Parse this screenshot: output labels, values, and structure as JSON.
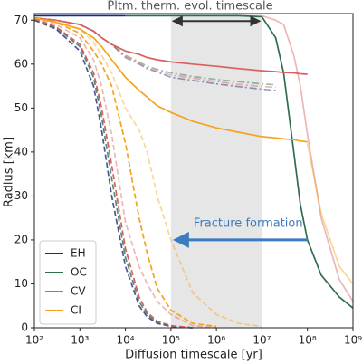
{
  "chart_data": {
    "type": "line",
    "title": "Pltm. therm. evol. timescale",
    "annotation": "Fracture formation",
    "xlabel": "Diffusion timescale [yr]",
    "ylabel": "Radius [km]",
    "log_x": true,
    "legend": "lower left",
    "shade": [
      100000,
      10000000
    ],
    "timescale_arrow": {
      "x": [
        100000,
        10000000
      ],
      "y": 69.8
    },
    "fracture_arrow": {
      "x": [
        100000000,
        100000
      ],
      "y": 20
    },
    "xlim": [
      100,
      1000000000
    ],
    "ylim": [
      0,
      71.5
    ],
    "xticks": [
      {
        "value": 100,
        "label": "10²"
      },
      {
        "value": 1000,
        "label": "10³"
      },
      {
        "value": 10000,
        "label": "10⁴"
      },
      {
        "value": 100000,
        "label": "10⁵"
      },
      {
        "value": 1000000,
        "label": "10⁶"
      },
      {
        "value": 10000000,
        "label": "10⁷"
      },
      {
        "value": 100000000,
        "label": "10⁸"
      },
      {
        "value": 1000000000,
        "label": "10⁹"
      }
    ],
    "yticks": [
      0,
      10,
      20,
      30,
      40,
      50,
      60,
      70
    ],
    "x": [
      100,
      300,
      1000,
      2000,
      3000,
      5000,
      10000,
      20000,
      30000,
      50000,
      100000,
      300000,
      1000000,
      3000000,
      10000000,
      20000000,
      30000000,
      50000000,
      70000000,
      100000000,
      200000000,
      500000000,
      1000000000
    ],
    "series": [
      {
        "name": "EH",
        "color": "#1f2a7a",
        "curves": [
          {
            "style": "solid",
            "alpha": 1,
            "values": [
              71,
              71,
              71,
              71,
              71,
              71,
              71,
              null,
              null,
              null,
              null,
              null,
              null,
              null,
              null,
              null,
              null,
              null,
              null,
              null,
              null,
              null,
              null
            ]
          },
          {
            "style": "dashdot",
            "alpha": 0.45,
            "values": [
              70.5,
              70,
              69,
              67.5,
              66,
              64.5,
              61.5,
              60,
              59,
              58.2,
              57,
              56.3,
              55.5,
              54.9,
              54.3,
              54,
              null,
              null,
              null,
              null,
              null,
              null,
              null
            ]
          },
          {
            "style": "dashed",
            "alpha": 0.8,
            "values": [
              70,
              68,
              63,
              55,
              45,
              30,
              14,
              5,
              2.5,
              1,
              0.3,
              0,
              null,
              null,
              null,
              null,
              null,
              null,
              null,
              null,
              null,
              null,
              null
            ]
          }
        ]
      },
      {
        "name": "OC",
        "color": "#2f6e4c",
        "curves": [
          {
            "style": "solid",
            "alpha": 1,
            "values": [
              null,
              null,
              null,
              null,
              null,
              null,
              71,
              71,
              71,
              71,
              71,
              71,
              71,
              71,
              70.8,
              66,
              58,
              40,
              28,
              20,
              12,
              7,
              4.5
            ]
          },
          {
            "style": "dashdot",
            "alpha": 0.45,
            "values": [
              70.5,
              70,
              69,
              67.5,
              66,
              64.5,
              62,
              60.5,
              59.5,
              58.8,
              58,
              57.2,
              56.5,
              56,
              55.5,
              55.3,
              null,
              null,
              null,
              null,
              null,
              null,
              null
            ]
          },
          {
            "style": "dashed",
            "alpha": 0.8,
            "values": [
              70,
              68.3,
              64,
              57,
              48,
              34,
              16,
              6,
              3,
              1.2,
              0.4,
              0,
              null,
              null,
              null,
              null,
              null,
              null,
              null,
              null,
              null,
              null,
              null
            ]
          }
        ]
      },
      {
        "name": "CV",
        "color": "#d9605f",
        "curves": [
          {
            "style": "solid",
            "alpha": 1,
            "values": [
              70.5,
              70,
              69,
              67.5,
              66,
              64.5,
              63,
              62.2,
              61.5,
              61,
              60.5,
              60,
              59.5,
              59,
              58.5,
              58.3,
              58.1,
              58,
              57.8,
              57.7,
              null,
              null,
              null
            ]
          },
          {
            "style": "solid",
            "alpha": 0.45,
            "values": [
              null,
              null,
              null,
              null,
              null,
              null,
              null,
              null,
              null,
              null,
              null,
              null,
              null,
              null,
              71,
              70,
              69,
              62,
              55,
              44,
              25,
              11,
              6
            ]
          },
          {
            "style": "dashdot",
            "alpha": 0.45,
            "values": [
              70.5,
              70,
              69,
              67.5,
              66,
              64.5,
              61.8,
              60.2,
              59.2,
              58.5,
              57.5,
              56.8,
              56,
              55.4,
              54.9,
              54.7,
              null,
              null,
              null,
              null,
              null,
              null,
              null
            ]
          },
          {
            "style": "dashed",
            "alpha": 1,
            "values": [
              70.3,
              68.5,
              64.5,
              58,
              50,
              37,
              18,
              7,
              3.5,
              1.5,
              0.5,
              0,
              null,
              null,
              null,
              null,
              null,
              null,
              null,
              null,
              null,
              null,
              null
            ]
          },
          {
            "style": "dashed",
            "alpha": 0.45,
            "values": [
              70.3,
              69,
              66,
              61,
              55,
              44,
              24,
              14,
              10,
              6,
              3,
              0.5,
              0,
              null,
              null,
              null,
              null,
              null,
              null,
              null,
              null,
              null,
              null
            ]
          }
        ]
      },
      {
        "name": "CI",
        "color": "#f5a31d",
        "curves": [
          {
            "style": "solid",
            "alpha": 1,
            "values": [
              70.5,
              69.5,
              68,
              66,
              64,
              61,
              57,
              54,
              52.5,
              50.5,
              49,
              47,
              45.5,
              44.5,
              43.5,
              43.2,
              43,
              42.8,
              42.5,
              42.3,
              null,
              null,
              null
            ]
          },
          {
            "style": "solid",
            "alpha": 0.45,
            "values": [
              null,
              null,
              null,
              null,
              null,
              null,
              null,
              null,
              null,
              null,
              null,
              null,
              null,
              null,
              null,
              null,
              null,
              null,
              null,
              42,
              26,
              14,
              10
            ]
          },
          {
            "style": "dashed",
            "alpha": 1,
            "values": [
              70.5,
              69.5,
              67,
              63,
              60,
              55,
              42,
              25,
              17,
              9,
              4,
              1,
              0.3,
              null,
              null,
              null,
              null,
              null,
              null,
              null,
              null,
              null,
              null
            ]
          },
          {
            "style": "dashed",
            "alpha": 0.45,
            "values": [
              70.5,
              69.8,
              68,
              65,
              62,
              58,
              50,
              45,
              40,
              30,
              20,
              8,
              3,
              1,
              0.3,
              null,
              null,
              null,
              null,
              null,
              null,
              null,
              null
            ]
          }
        ]
      }
    ]
  }
}
